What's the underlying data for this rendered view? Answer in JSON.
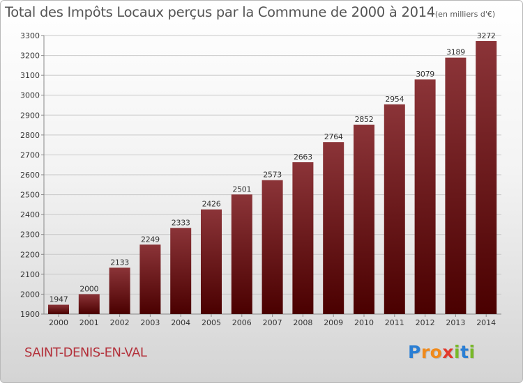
{
  "chart_data": {
    "type": "bar",
    "title": "Total des Impôts Locaux perçus par la Commune de 2000 à 2014",
    "unit_label": "(en milliers d'€)",
    "categories": [
      "2000",
      "2001",
      "2002",
      "2003",
      "2004",
      "2005",
      "2006",
      "2007",
      "2008",
      "2009",
      "2010",
      "2011",
      "2012",
      "2013",
      "2014"
    ],
    "values": [
      1947,
      2000,
      2133,
      2249,
      2333,
      2426,
      2501,
      2573,
      2663,
      2764,
      2852,
      2954,
      3079,
      3189,
      3272
    ],
    "ylim": [
      1900,
      3300
    ],
    "yticks": [
      1900,
      2000,
      2100,
      2200,
      2300,
      2400,
      2500,
      2600,
      2700,
      2800,
      2900,
      3000,
      3100,
      3200,
      3300
    ],
    "xlabel": "",
    "ylabel": "",
    "grid": true,
    "bar_color_top": "#8b3438",
    "bar_color_bottom": "#4a0000"
  },
  "footer": {
    "commune": "SAINT-DENIS-EN-VAL",
    "logo_letters": [
      "P",
      "r",
      "o",
      "x",
      "i",
      "t",
      "i"
    ],
    "logo_colors": [
      "#2b7fd4",
      "#f08a1c",
      "#f08a1c",
      "#e23a2d",
      "#78b928",
      "#2b7fd4",
      "#78b928"
    ]
  }
}
